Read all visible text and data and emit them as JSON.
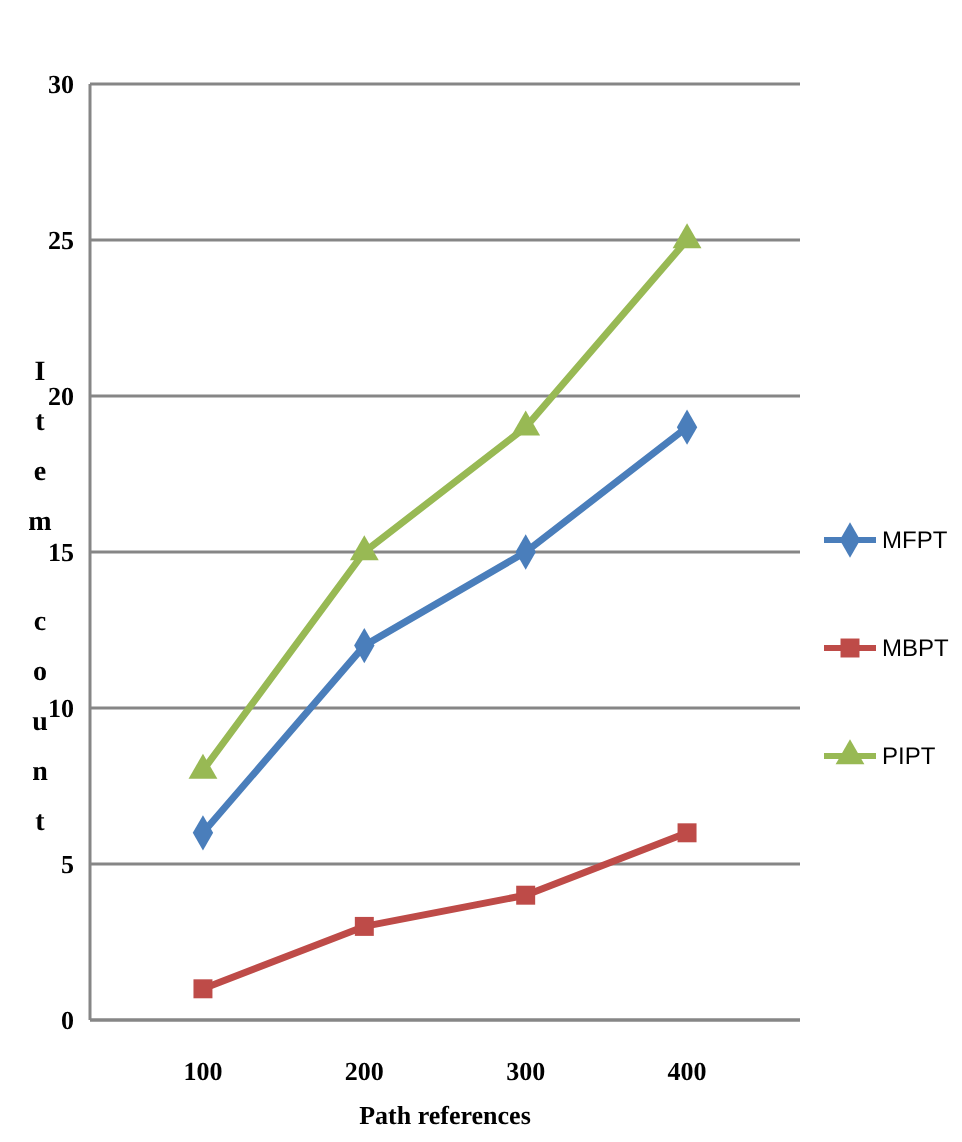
{
  "chart_data": {
    "type": "line",
    "xlabel": "Path references",
    "ylabel": "Item count",
    "categories": [
      "100",
      "200",
      "300",
      "400"
    ],
    "ylim": [
      0,
      30
    ],
    "yticks": [
      0,
      5,
      10,
      15,
      20,
      25,
      30
    ],
    "grid": "y",
    "legend": "right",
    "series": [
      {
        "name": "MFPT",
        "color": "#4a7ebb",
        "values": [
          6,
          12,
          15,
          19
        ],
        "marker": "diamond"
      },
      {
        "name": "MBPT",
        "color": "#be4b48",
        "values": [
          1,
          3,
          4,
          6
        ],
        "marker": "square"
      },
      {
        "name": "PIPT",
        "color": "#98b954",
        "values": [
          8,
          15,
          19,
          25
        ],
        "marker": "triangle"
      }
    ]
  }
}
